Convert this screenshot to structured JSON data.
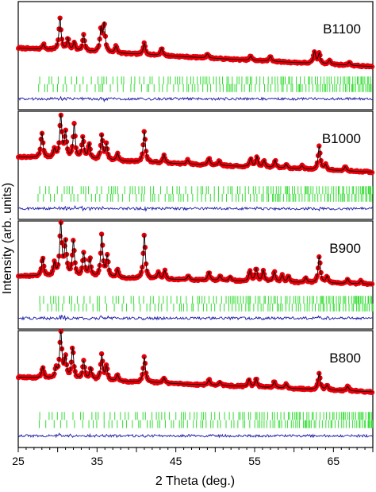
{
  "chart_data": {
    "type": "line",
    "xlabel": "2 Theta (deg.)",
    "ylabel": "Intensity (arb. units)",
    "xlim": [
      25,
      70
    ],
    "x_ticks": [
      25,
      35,
      45,
      55,
      65
    ],
    "colors": {
      "observed": "#e8000b",
      "calculated": "#000000",
      "difference": "#1a1aa8",
      "bragg_ticks": "#33dd33"
    },
    "panels": [
      {
        "label": "B1100",
        "baseline": 0.28,
        "slope": 0.22,
        "noise_seed": 7,
        "peaks": [
          [
            28.2,
            0.06
          ],
          [
            30.3,
            0.38
          ],
          [
            31.3,
            0.14
          ],
          [
            32.1,
            0.1
          ],
          [
            33.3,
            0.19
          ],
          [
            35.5,
            0.26
          ],
          [
            35.9,
            0.33
          ],
          [
            37.4,
            0.08
          ],
          [
            41.0,
            0.14
          ],
          [
            43.2,
            0.09
          ],
          [
            49.0,
            0.05
          ],
          [
            54.5,
            0.05
          ],
          [
            57.0,
            0.06
          ],
          [
            62.6,
            0.14
          ],
          [
            63.2,
            0.12
          ],
          [
            64.5,
            0.05
          ],
          [
            67.0,
            0.04
          ]
        ]
      },
      {
        "label": "B1000",
        "baseline": 0.33,
        "slope": 0.18,
        "noise_seed": 13,
        "peaks": [
          [
            28.0,
            0.3
          ],
          [
            29.6,
            0.1
          ],
          [
            30.4,
            0.5
          ],
          [
            31.0,
            0.3
          ],
          [
            32.1,
            0.4
          ],
          [
            33.2,
            0.26
          ],
          [
            34.0,
            0.18
          ],
          [
            35.6,
            0.3
          ],
          [
            36.2,
            0.18
          ],
          [
            37.6,
            0.09
          ],
          [
            41.0,
            0.37
          ],
          [
            43.5,
            0.1
          ],
          [
            46.5,
            0.05
          ],
          [
            49.2,
            0.08
          ],
          [
            50.5,
            0.05
          ],
          [
            54.5,
            0.1
          ],
          [
            55.3,
            0.12
          ],
          [
            56.2,
            0.08
          ],
          [
            57.6,
            0.09
          ],
          [
            59.0,
            0.05
          ],
          [
            61.0,
            0.04
          ],
          [
            63.2,
            0.28
          ],
          [
            64.0,
            0.06
          ],
          [
            66.5,
            0.05
          ]
        ]
      },
      {
        "label": "B900",
        "baseline": 0.3,
        "slope": 0.1,
        "noise_seed": 21,
        "peaks": [
          [
            28.1,
            0.22
          ],
          [
            29.6,
            0.15
          ],
          [
            30.4,
            0.62
          ],
          [
            31.0,
            0.4
          ],
          [
            32.0,
            0.42
          ],
          [
            33.3,
            0.28
          ],
          [
            34.1,
            0.22
          ],
          [
            35.6,
            0.5
          ],
          [
            36.3,
            0.25
          ],
          [
            37.6,
            0.1
          ],
          [
            41.0,
            0.52
          ],
          [
            42.8,
            0.08
          ],
          [
            43.6,
            0.1
          ],
          [
            46.6,
            0.05
          ],
          [
            49.2,
            0.1
          ],
          [
            50.6,
            0.06
          ],
          [
            51.9,
            0.05
          ],
          [
            54.4,
            0.12
          ],
          [
            55.2,
            0.15
          ],
          [
            56.1,
            0.13
          ],
          [
            57.5,
            0.12
          ],
          [
            58.5,
            0.08
          ],
          [
            59.3,
            0.07
          ],
          [
            61.5,
            0.06
          ],
          [
            63.2,
            0.32
          ],
          [
            64.2,
            0.08
          ],
          [
            66.8,
            0.06
          ],
          [
            68.5,
            0.04
          ]
        ]
      },
      {
        "label": "B800",
        "baseline": 0.38,
        "slope": 0.16,
        "noise_seed": 29,
        "peaks": [
          [
            28.1,
            0.12
          ],
          [
            29.8,
            0.1
          ],
          [
            30.4,
            0.52
          ],
          [
            31.0,
            0.22
          ],
          [
            31.9,
            0.34
          ],
          [
            33.3,
            0.2
          ],
          [
            34.2,
            0.13
          ],
          [
            35.6,
            0.28
          ],
          [
            36.2,
            0.15
          ],
          [
            37.6,
            0.07
          ],
          [
            41.0,
            0.28
          ],
          [
            43.5,
            0.06
          ],
          [
            49.2,
            0.06
          ],
          [
            50.6,
            0.04
          ],
          [
            54.3,
            0.08
          ],
          [
            55.2,
            0.09
          ],
          [
            57.5,
            0.07
          ],
          [
            59.0,
            0.05
          ],
          [
            63.2,
            0.18
          ],
          [
            64.2,
            0.05
          ],
          [
            66.8,
            0.05
          ]
        ]
      }
    ]
  }
}
